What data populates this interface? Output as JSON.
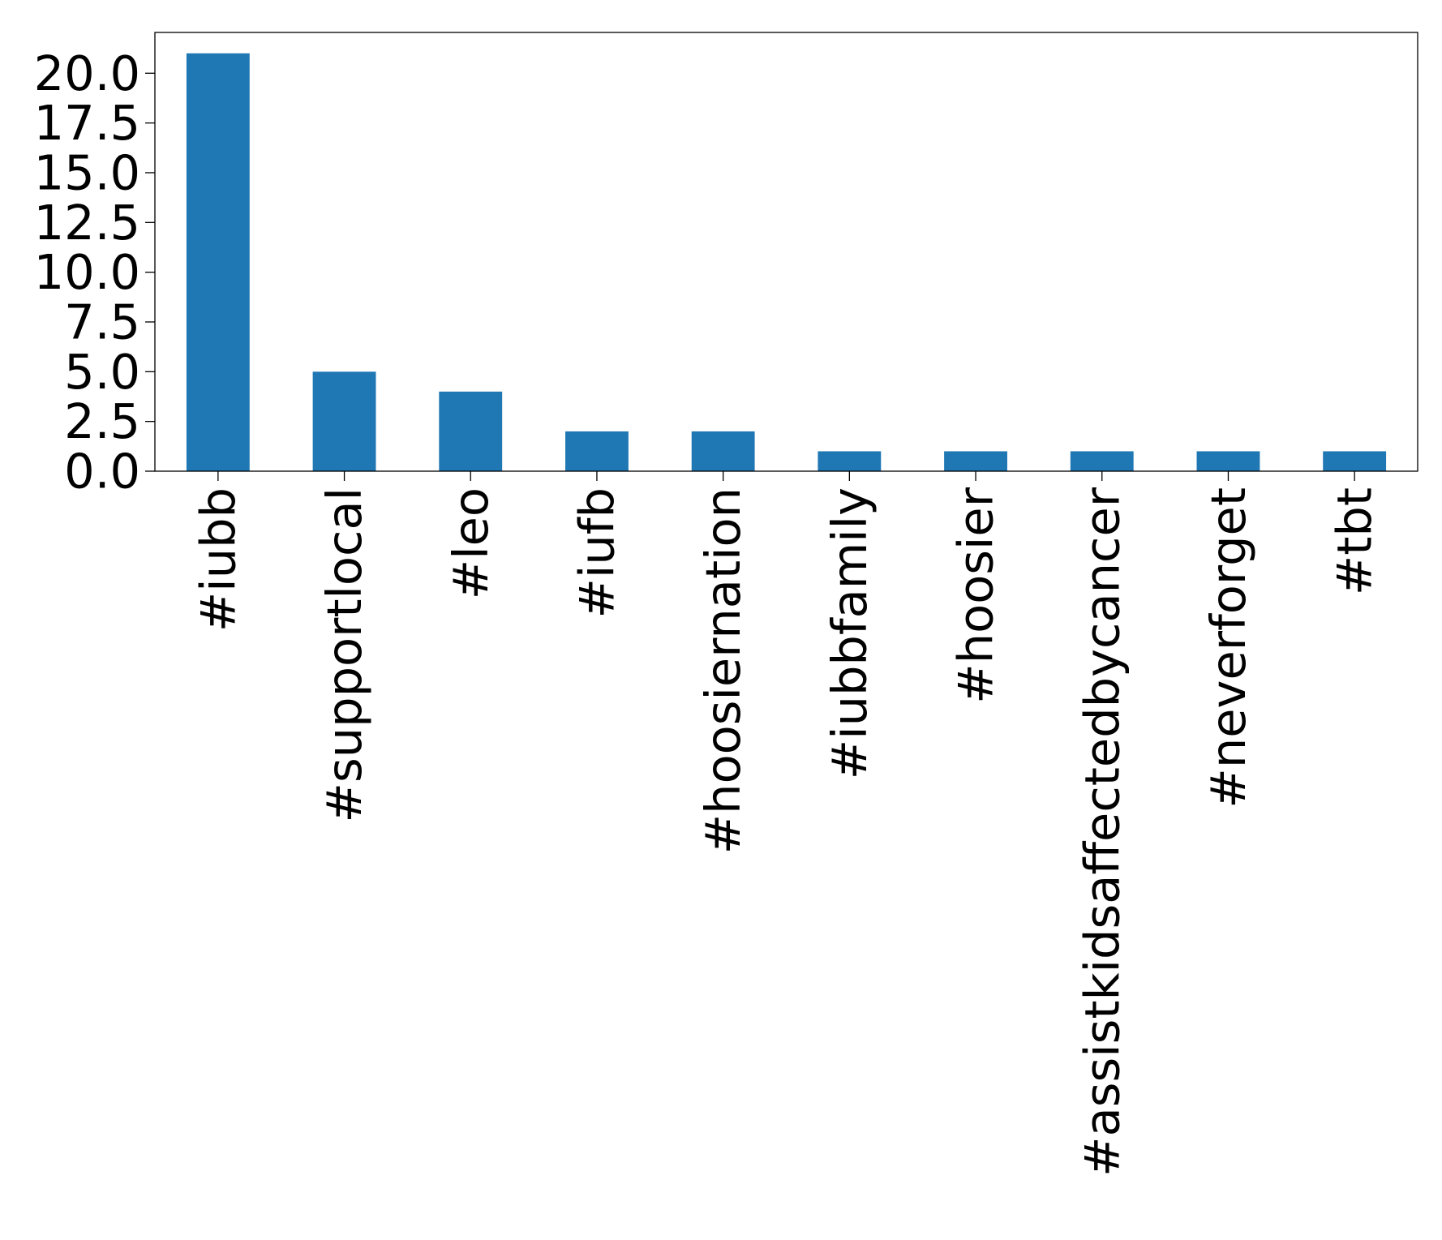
{
  "chart_data": {
    "type": "bar",
    "categories": [
      "#iubb",
      "#supportlocal",
      "#leo",
      "#iufb",
      "#hoosiernation",
      "#iubbfamily",
      "#hoosier",
      "#assistkidsaffectedbycancer",
      "#neverforget",
      "#tbt"
    ],
    "values": [
      21,
      5,
      4,
      2,
      2,
      1,
      1,
      1,
      1,
      1
    ],
    "yticks": [
      "0.0",
      "2.5",
      "5.0",
      "7.5",
      "10.0",
      "12.5",
      "15.0",
      "17.5",
      "20.0"
    ],
    "ylim": [
      0,
      22.05
    ],
    "xlabel": "",
    "ylabel": "",
    "title": "",
    "grid": false,
    "bar_color": "#1f77b4"
  }
}
